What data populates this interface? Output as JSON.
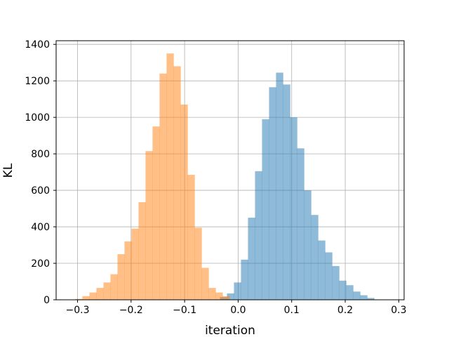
{
  "chart_data": {
    "type": "histogram",
    "title": "",
    "xlabel": "iteration",
    "ylabel": "KL",
    "xlim": [
      -0.34,
      0.31
    ],
    "ylim": [
      0,
      1420
    ],
    "grid": true,
    "xticks": [
      -0.3,
      -0.2,
      -0.1,
      0.0,
      0.1,
      0.2,
      0.3
    ],
    "xtick_labels": [
      "−0.3",
      "−0.2",
      "−0.1",
      "0.0",
      "0.1",
      "0.2",
      "0.3"
    ],
    "yticks": [
      0,
      200,
      400,
      600,
      800,
      1000,
      1200,
      1400
    ],
    "ytick_labels": [
      "0",
      "200",
      "400",
      "600",
      "800",
      "1000",
      "1200",
      "1400"
    ],
    "series": [
      {
        "color": "#1f77b4",
        "alpha": 0.5,
        "bin_start": -0.034,
        "bin_width": 0.0131,
        "counts": [
          15,
          35,
          95,
          220,
          450,
          705,
          990,
          1165,
          1245,
          1180,
          1000,
          830,
          600,
          465,
          325,
          260,
          185,
          105,
          80,
          45,
          25,
          10
        ]
      },
      {
        "color": "#ff7f0e",
        "alpha": 0.5,
        "bin_start": -0.304,
        "bin_width": 0.0131,
        "counts": [
          5,
          20,
          40,
          65,
          95,
          140,
          250,
          320,
          390,
          535,
          815,
          950,
          1240,
          1350,
          1280,
          1070,
          685,
          395,
          175,
          65,
          40,
          20
        ]
      }
    ]
  }
}
